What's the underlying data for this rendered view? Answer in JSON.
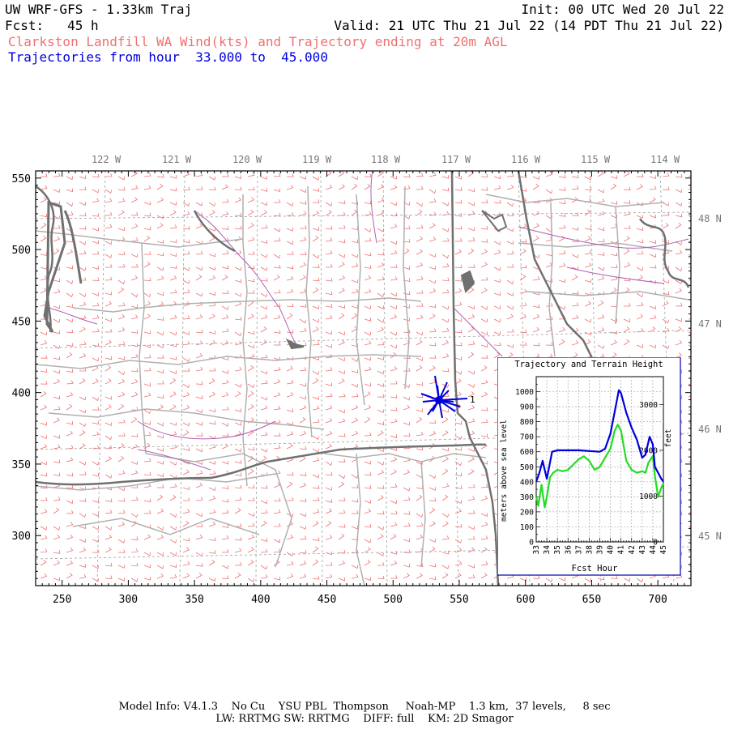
{
  "header": {
    "title": "UW WRF-GFS - 1.33km Traj",
    "init": "Init: 00 UTC Wed 20 Jul 22",
    "fcst": "Fcst:   45 h",
    "valid": "Valid: 21 UTC Thu 21 Jul 22 (14 PDT Thu 21 Jul 22)",
    "subtitle": "Clarkston Landfill WA Wind(kts) and Trajectory ending at 20m AGL",
    "traj_hours": "Trajectories from hour  33.000 to  45.000"
  },
  "map": {
    "lon_labels": [
      "122 W",
      "121 W",
      "120 W",
      "119 W",
      "118 W",
      "117 W",
      "116 W",
      "115 W",
      "114 W"
    ],
    "lat_labels": [
      "48 N",
      "47 N",
      "46 N",
      "45 N"
    ],
    "x_ticks": [
      "250",
      "300",
      "350",
      "400",
      "450",
      "500",
      "550",
      "600",
      "650",
      "700"
    ],
    "y_ticks": [
      "550",
      "500",
      "450",
      "400",
      "350",
      "300"
    ],
    "trajectory_label": "1",
    "colors": {
      "barbs": "#f07070",
      "counties": "#b0b0b0",
      "states": "#707070",
      "rivers": "#b060b0",
      "trajectory": "#0000dd"
    }
  },
  "inset": {
    "title": "Trajectory and Terrain Height",
    "ylabel_left": "meters above sea level",
    "ylabel_right": "feet",
    "xlabel": "Fcst Hour",
    "x_ticks": [
      "33",
      "34",
      "35",
      "36",
      "37",
      "38",
      "39",
      "40",
      "41",
      "42",
      "43",
      "44",
      "45"
    ],
    "y_ticks_m": [
      "0",
      "100",
      "200",
      "300",
      "400",
      "500",
      "600",
      "700",
      "800",
      "900",
      "1000"
    ],
    "y_ticks_ft": [
      "0",
      "1000",
      "2000",
      "3000"
    ]
  },
  "chart_data": {
    "type": "line",
    "title": "Trajectory and Terrain Height",
    "xlabel": "Fcst Hour",
    "ylabel": "meters above sea level",
    "xlim": [
      33,
      45
    ],
    "ylim": [
      0,
      1100
    ],
    "series": [
      {
        "name": "trajectory",
        "color": "#0000dd",
        "x": [
          33,
          33.3,
          33.6,
          34,
          34.5,
          35,
          36,
          37,
          38,
          39,
          39.5,
          40,
          40.5,
          40.8,
          41,
          41.5,
          42,
          42.5,
          43,
          43.3,
          43.7,
          44,
          44.2,
          44.5,
          44.8,
          45
        ],
        "y": [
          400,
          460,
          540,
          420,
          600,
          610,
          610,
          610,
          605,
          600,
          620,
          720,
          900,
          1010,
          990,
          860,
          760,
          680,
          560,
          580,
          700,
          650,
          500,
          460,
          420,
          400
        ]
      },
      {
        "name": "terrain",
        "color": "#22dd22",
        "x": [
          33,
          33.2,
          33.5,
          33.8,
          34,
          34.3,
          34.6,
          35,
          35.5,
          36,
          37,
          37.5,
          38,
          38.5,
          39,
          39.5,
          40,
          40.4,
          40.7,
          41,
          41.5,
          42,
          42.5,
          43,
          43.3,
          43.6,
          44,
          44.2,
          44.5,
          44.8,
          45
        ],
        "y": [
          300,
          240,
          380,
          230,
          300,
          430,
          460,
          480,
          470,
          480,
          550,
          570,
          540,
          480,
          500,
          560,
          620,
          740,
          780,
          740,
          540,
          480,
          460,
          470,
          460,
          530,
          570,
          440,
          300,
          360,
          390
        ]
      }
    ]
  },
  "footer": {
    "line1": "Model Info: V4.1.3    No Cu    YSU PBL  Thompson     Noah-MP    1.3 km,  37 levels,     8 sec",
    "line2": "LW: RRTMG SW: RRTMG    DIFF: full    KM: 2D Smagor"
  }
}
